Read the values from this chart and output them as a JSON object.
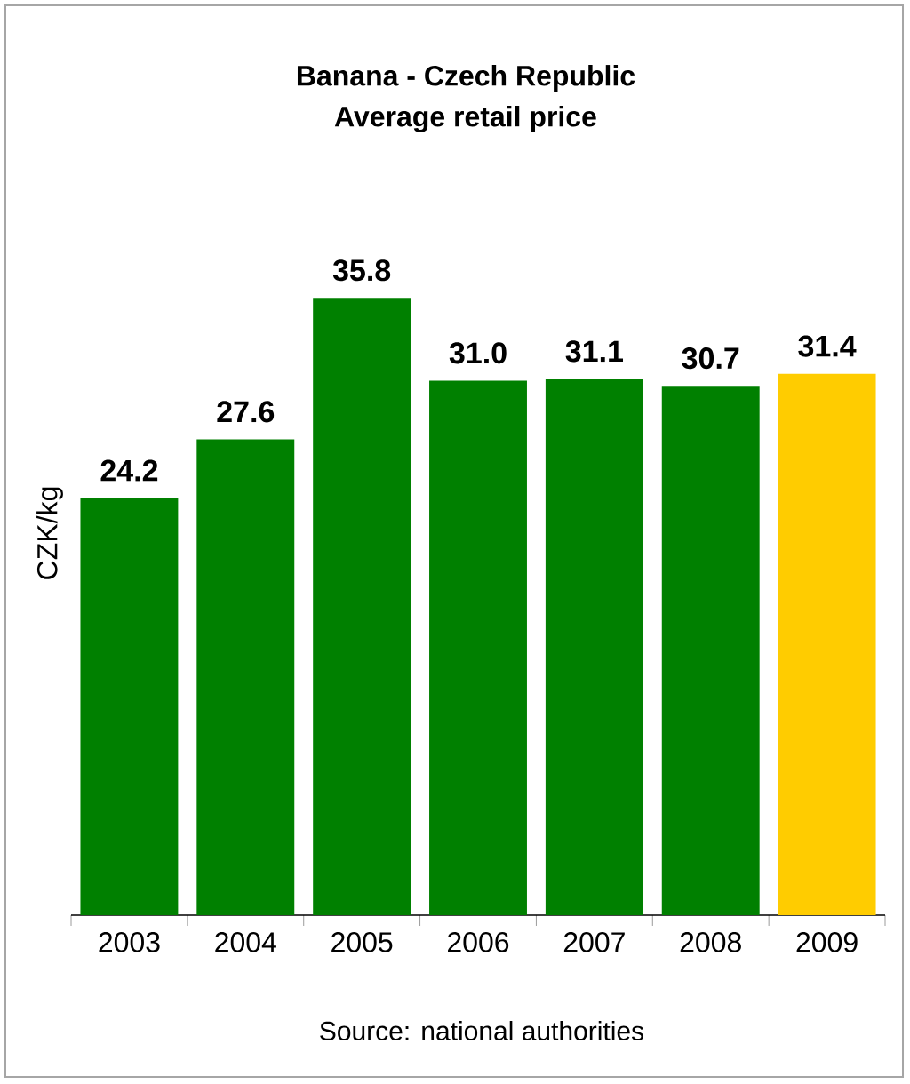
{
  "chart_data": {
    "type": "bar",
    "title": "Banana - Czech Republic",
    "subtitle": "Average retail price",
    "ylabel": "CZK/kg",
    "categories": [
      "2003",
      "2004",
      "2005",
      "2006",
      "2007",
      "2008",
      "2009"
    ],
    "values": [
      24.2,
      27.6,
      35.8,
      31.0,
      31.1,
      30.7,
      31.4
    ],
    "value_labels": [
      "24.2",
      "27.6",
      "35.8",
      "31.0",
      "31.1",
      "30.7",
      "31.4"
    ],
    "colors": [
      "#008000",
      "#008000",
      "#008000",
      "#008000",
      "#008000",
      "#008000",
      "#ffcc00"
    ],
    "tick_labels": "x",
    "annotations": [
      "Source: national authorities"
    ]
  }
}
